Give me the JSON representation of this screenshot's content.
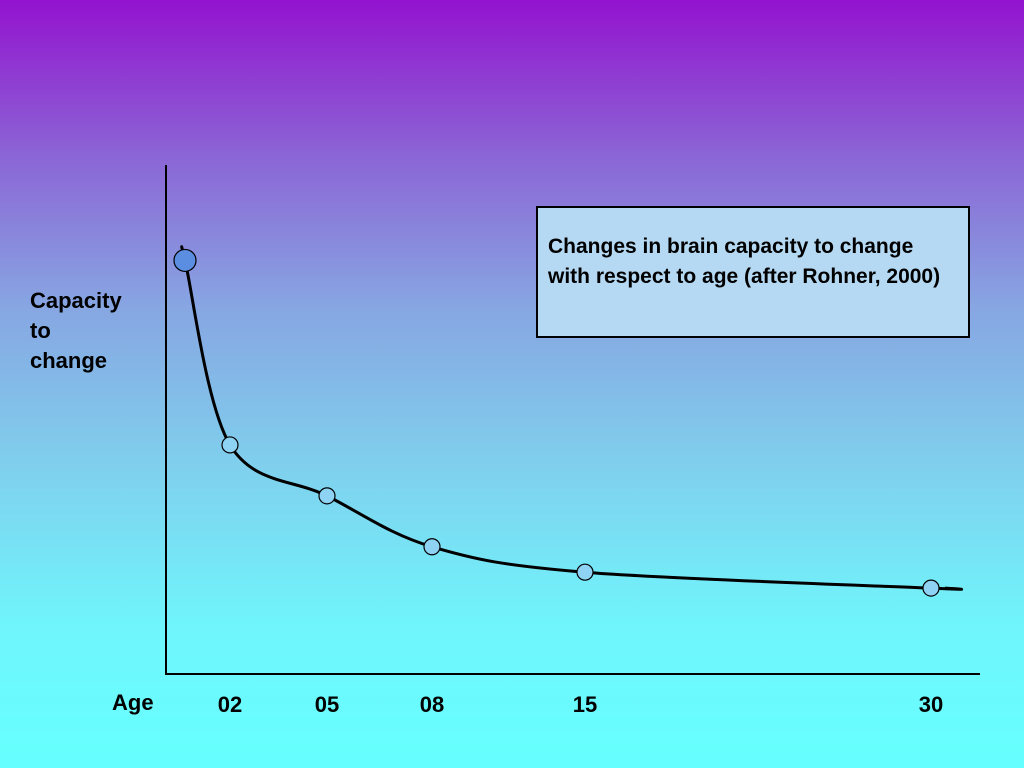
{
  "chart_data": {
    "type": "line",
    "xlabel": "Age",
    "ylabel_lines": [
      "Capacity",
      "to",
      "change"
    ],
    "annotation": "Changes in brain capacity to change with respect to age (after Rohner, 2000)",
    "x_ticks": [
      "02",
      "05",
      "08",
      "15",
      "30"
    ],
    "series": [
      {
        "x": [
          "0",
          "02",
          "05",
          "08",
          "15",
          "30"
        ],
        "y": [
          100,
          42,
          26,
          10,
          2,
          -3
        ]
      }
    ],
    "ylim": [
      -30,
      130
    ],
    "grid": false,
    "legend": "none",
    "colors": {
      "line": "#000000",
      "first_marker": "#5b8ee0",
      "markers": "#8fd3f4"
    }
  }
}
